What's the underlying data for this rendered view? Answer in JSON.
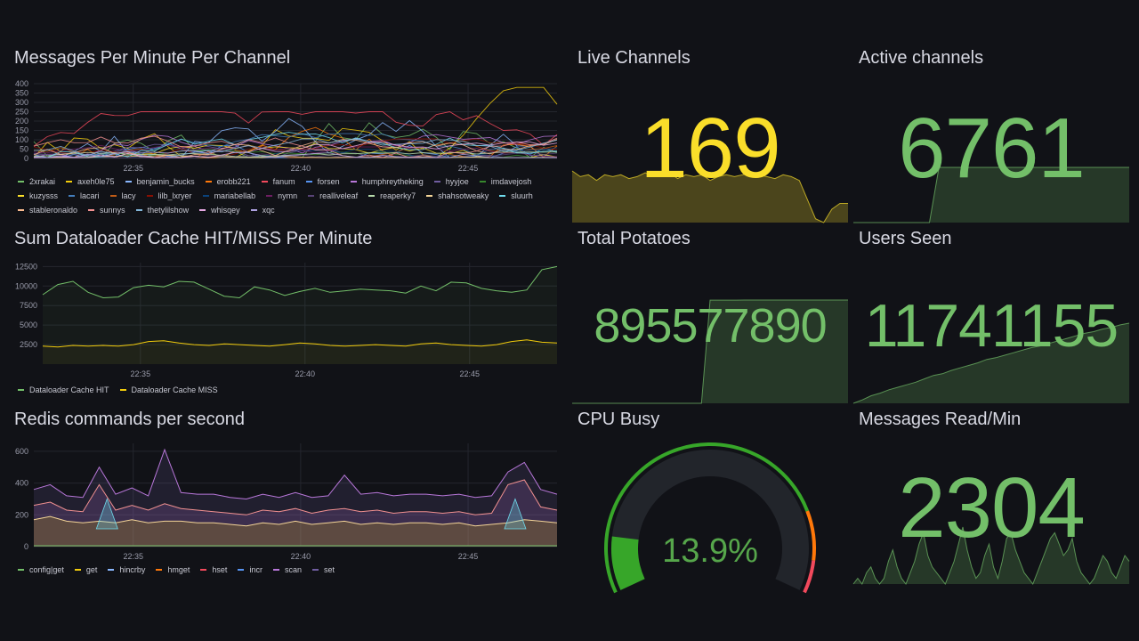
{
  "colors": {
    "green": "#73bf69",
    "yellow": "#fade2a",
    "gauge_green": "#37a629",
    "bg": "#111217"
  },
  "panels": {
    "messages": {
      "title": "Messages Per Minute Per Channel",
      "legend": [
        {
          "name": "2xrakai",
          "color": "#73bf69"
        },
        {
          "name": "axeh0le75",
          "color": "#f2cc0c"
        },
        {
          "name": "benjamin_bucks",
          "color": "#8ab8ff"
        },
        {
          "name": "erobb221",
          "color": "#ff780a"
        },
        {
          "name": "fanum",
          "color": "#f2495c"
        },
        {
          "name": "forsen",
          "color": "#5794f2"
        },
        {
          "name": "humphreytheking",
          "color": "#b877d9"
        },
        {
          "name": "hyyjoe",
          "color": "#705da0"
        },
        {
          "name": "imdavejosh",
          "color": "#37872d"
        },
        {
          "name": "kuzysss",
          "color": "#fade2a"
        },
        {
          "name": "lacari",
          "color": "#447ebc"
        },
        {
          "name": "lacy",
          "color": "#c15c17"
        },
        {
          "name": "lilb_lxryer",
          "color": "#890f02"
        },
        {
          "name": "mariabellab",
          "color": "#0a437c"
        },
        {
          "name": "nymn",
          "color": "#6d1f62"
        },
        {
          "name": "realliveleaf",
          "color": "#584477"
        },
        {
          "name": "reaperky7",
          "color": "#b7dbab"
        },
        {
          "name": "shahsotweaky",
          "color": "#f4d598"
        },
        {
          "name": "sluurh",
          "color": "#70dbed"
        },
        {
          "name": "stableronaldo",
          "color": "#f9ba8f"
        },
        {
          "name": "sunnys",
          "color": "#f29191"
        },
        {
          "name": "thetylilshow",
          "color": "#82b5d8"
        },
        {
          "name": "whisqey",
          "color": "#e5a8e2"
        },
        {
          "name": "xqc",
          "color": "#aea2e0"
        }
      ]
    },
    "cache": {
      "title": "Sum Dataloader Cache HIT/MISS Per Minute",
      "legend": [
        {
          "name": "Dataloader Cache HIT",
          "color": "#73bf69"
        },
        {
          "name": "Dataloader Cache MISS",
          "color": "#f2cc0c"
        }
      ]
    },
    "redis": {
      "title": "Redis commands per second",
      "legend": [
        {
          "name": "config|get",
          "color": "#73bf69"
        },
        {
          "name": "get",
          "color": "#f2cc0c"
        },
        {
          "name": "hincrby",
          "color": "#8ab8ff"
        },
        {
          "name": "hmget",
          "color": "#ff780a"
        },
        {
          "name": "hset",
          "color": "#f2495c"
        },
        {
          "name": "incr",
          "color": "#5794f2"
        },
        {
          "name": "scan",
          "color": "#b877d9"
        },
        {
          "name": "set",
          "color": "#705da0"
        }
      ]
    },
    "live_channels": {
      "title": "Live Channels",
      "value": "169"
    },
    "active_channels": {
      "title": "Active channels",
      "value": "6761"
    },
    "total_potatoes": {
      "title": "Total Potatoes",
      "value": "895577890"
    },
    "users_seen": {
      "title": "Users Seen",
      "value": "11741155"
    },
    "cpu_busy": {
      "title": "CPU Busy",
      "value": "13.9%",
      "percent": 13.9
    },
    "messages_read": {
      "title": "Messages Read/Min",
      "value": "2304"
    }
  },
  "chart_data": [
    {
      "type": "line",
      "title": "Messages Per Minute Per Channel",
      "x_ticks": [
        "22:35",
        "22:40",
        "22:45"
      ],
      "y_ticks": [
        0,
        50,
        100,
        150,
        200,
        250,
        300,
        350,
        400
      ],
      "ylim": [
        0,
        400
      ],
      "series_top_values": [
        400,
        380,
        350,
        300,
        250,
        200,
        150,
        100,
        50
      ]
    },
    {
      "type": "line",
      "title": "Sum Dataloader Cache HIT/MISS Per Minute",
      "x_ticks": [
        "22:35",
        "22:40",
        "22:45"
      ],
      "y_ticks": [
        2500,
        5000,
        7500,
        10000,
        12500
      ],
      "ylim": [
        0,
        13000
      ],
      "series": [
        {
          "name": "Dataloader Cache HIT",
          "values": [
            8900,
            10200,
            10600,
            9200,
            8500,
            8600,
            9800,
            10100,
            9900,
            10600,
            10500,
            9600,
            8700,
            8500,
            9900,
            9500,
            8800,
            9300,
            9700,
            9200,
            9400,
            9600,
            9500,
            9400,
            9100,
            10000,
            9400,
            10500,
            10400,
            9700,
            9400,
            9200,
            9500,
            12100,
            12500
          ]
        },
        {
          "name": "Dataloader Cache MISS",
          "values": [
            2300,
            2200,
            2400,
            2300,
            2400,
            2300,
            2500,
            2900,
            3000,
            2700,
            2500,
            2400,
            2600,
            2500,
            2400,
            2300,
            2500,
            2700,
            2600,
            2400,
            2300,
            2400,
            2500,
            2400,
            2300,
            2600,
            2700,
            2500,
            2400,
            2300,
            2500,
            2900,
            3100,
            2800,
            2700
          ]
        }
      ]
    },
    {
      "type": "area",
      "title": "Redis commands per second",
      "x_ticks": [
        "22:35",
        "22:40",
        "22:45"
      ],
      "y_ticks": [
        0,
        200,
        400,
        600
      ],
      "ylim": [
        0,
        650
      ],
      "series": [
        {
          "name": "set",
          "values": [
            360,
            390,
            320,
            310,
            500,
            330,
            370,
            320,
            610,
            340,
            330,
            330,
            310,
            300,
            330,
            310,
            340,
            310,
            320,
            450,
            330,
            340,
            320,
            330,
            330,
            320,
            330,
            310,
            320,
            470,
            530,
            360,
            330
          ]
        },
        {
          "name": "scan",
          "values": [
            260,
            280,
            230,
            220,
            390,
            230,
            260,
            230,
            270,
            240,
            230,
            220,
            210,
            200,
            230,
            220,
            240,
            210,
            230,
            240,
            220,
            230,
            210,
            220,
            220,
            210,
            220,
            200,
            210,
            390,
            420,
            250,
            230
          ]
        },
        {
          "name": "get",
          "values": [
            170,
            190,
            160,
            150,
            160,
            150,
            170,
            150,
            160,
            160,
            150,
            150,
            140,
            130,
            150,
            140,
            160,
            140,
            150,
            160,
            140,
            150,
            140,
            150,
            150,
            140,
            150,
            130,
            140,
            150,
            170,
            160,
            150
          ]
        }
      ]
    },
    {
      "type": "area",
      "title": "Live Channels",
      "values": [
        175,
        172,
        173,
        170,
        173,
        172,
        173,
        171,
        172,
        174,
        172,
        173,
        174,
        171,
        173,
        172,
        173,
        170,
        172,
        173,
        172,
        173,
        174,
        173,
        172,
        171,
        173,
        172,
        170,
        160,
        150,
        148,
        155,
        158,
        158
      ]
    },
    {
      "type": "area",
      "title": "Active channels",
      "values": [
        0,
        0,
        0,
        0,
        0,
        0,
        0,
        0,
        0,
        6761,
        6761,
        6761,
        6761,
        6761,
        6761,
        6761,
        6761,
        6761,
        6761,
        6761,
        6761,
        6761,
        6761,
        6761,
        6761,
        6761,
        6761,
        6761,
        6761,
        6761
      ]
    },
    {
      "type": "area",
      "title": "Total Potatoes",
      "values": [
        0,
        0,
        0,
        0,
        0,
        0,
        0,
        0,
        0,
        0,
        0,
        0,
        0,
        0,
        0,
        0,
        895000000,
        895000000,
        895100000,
        895100000,
        895200000,
        895200000,
        895300000,
        895300000,
        895400000,
        895400000,
        895500000,
        895500000,
        895577890,
        895577890,
        895577890,
        895577890,
        895577890
      ]
    },
    {
      "type": "area",
      "title": "Users Seen",
      "values": [
        0,
        4,
        9,
        12,
        16,
        19,
        22,
        25,
        29,
        33,
        35,
        39,
        42,
        45,
        48,
        52,
        54,
        57,
        60,
        63,
        66,
        68,
        71,
        74,
        77,
        80,
        83,
        85,
        88,
        90,
        93,
        95
      ]
    },
    {
      "type": "area",
      "title": "Messages Read/Min",
      "values": [
        2,
        3,
        2,
        4,
        5,
        3,
        2,
        3,
        6,
        8,
        5,
        3,
        2,
        4,
        6,
        9,
        11,
        7,
        5,
        4,
        3,
        2,
        4,
        6,
        9,
        12,
        8,
        5,
        3,
        4,
        7,
        9,
        5,
        3,
        6,
        10,
        11,
        8,
        6,
        4,
        3,
        2,
        4,
        6,
        8,
        10,
        11,
        9,
        7,
        8,
        10,
        6,
        4,
        3,
        2,
        3,
        5,
        7,
        6,
        4,
        3,
        5,
        7,
        6
      ]
    }
  ]
}
